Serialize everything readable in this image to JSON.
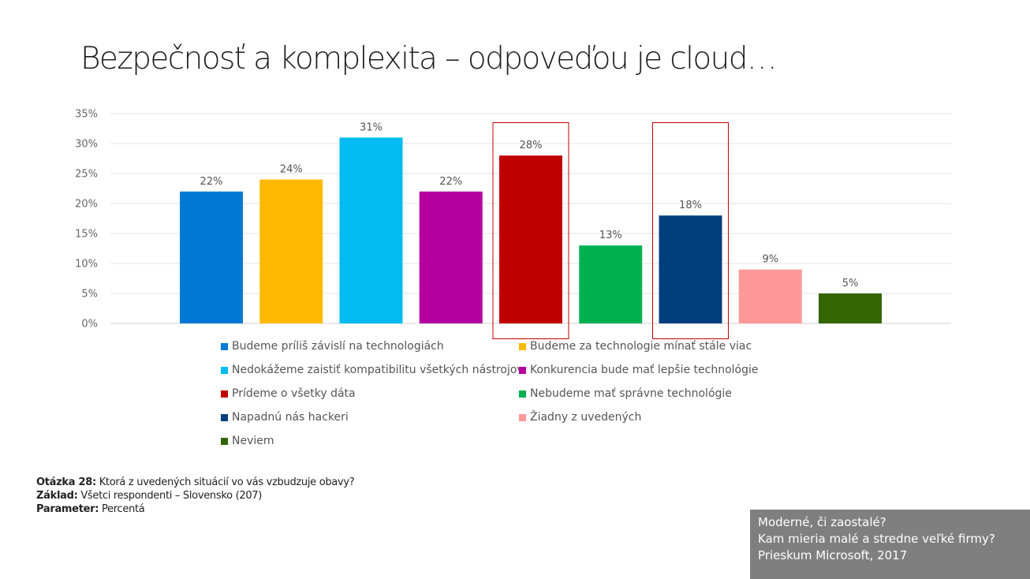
{
  "page": {
    "title": "Bezpečnosť a komplexita – odpoveďou je cloud…"
  },
  "notes": {
    "question_label": "Otázka 28:",
    "question_text": "Ktorá z uvedených situácií vo vás vzbudzuje obavy?",
    "base_label": "Základ:",
    "base_text": "Všetci respondenti – Slovensko (207)",
    "param_label": "Parameter:",
    "param_text": "Percentá"
  },
  "footer": {
    "line1": "Moderné, či zaostalé?",
    "line2": "Kam mieria malé a stredne veľké firmy?",
    "line3": "Prieskum Microsoft, 2017"
  },
  "chart_data": {
    "type": "bar",
    "ylim": [
      0,
      35
    ],
    "yticks": [
      "0%",
      "5%",
      "10%",
      "15%",
      "20%",
      "25%",
      "30%",
      "35%"
    ],
    "grid": true,
    "legend_position": "bottom",
    "series": [
      {
        "name": "Budeme príliš závislí na technologiách",
        "value": 22,
        "label": "22%",
        "color": "#0078d4",
        "highlighted": false
      },
      {
        "name": "Budeme za technologie mínať stále viac",
        "value": 24,
        "label": "24%",
        "color": "#ffb900",
        "highlighted": false
      },
      {
        "name": "Nedokážeme zaistiť kompatibilitu všetkých nástrojov",
        "value": 31,
        "label": "31%",
        "color": "#00bcf2",
        "highlighted": false
      },
      {
        "name": "Konkurencia bude mať lepšie technológie",
        "value": 22,
        "label": "22%",
        "color": "#b4009e",
        "highlighted": false
      },
      {
        "name": "Prídeme o všetky dáta",
        "value": 28,
        "label": "28%",
        "color": "#c00000",
        "highlighted": true
      },
      {
        "name": "Nebudeme mať správne technológie",
        "value": 13,
        "label": "13%",
        "color": "#00b050",
        "highlighted": false
      },
      {
        "name": "Napadnú nás hackeri",
        "value": 18,
        "label": "18%",
        "color": "#003f7d",
        "highlighted": true
      },
      {
        "name": "Žiadny z uvedených",
        "value": 9,
        "label": "9%",
        "color": "#ff9999",
        "highlighted": false
      },
      {
        "name": "Neviem",
        "value": 5,
        "label": "5%",
        "color": "#336600",
        "highlighted": false
      }
    ]
  }
}
